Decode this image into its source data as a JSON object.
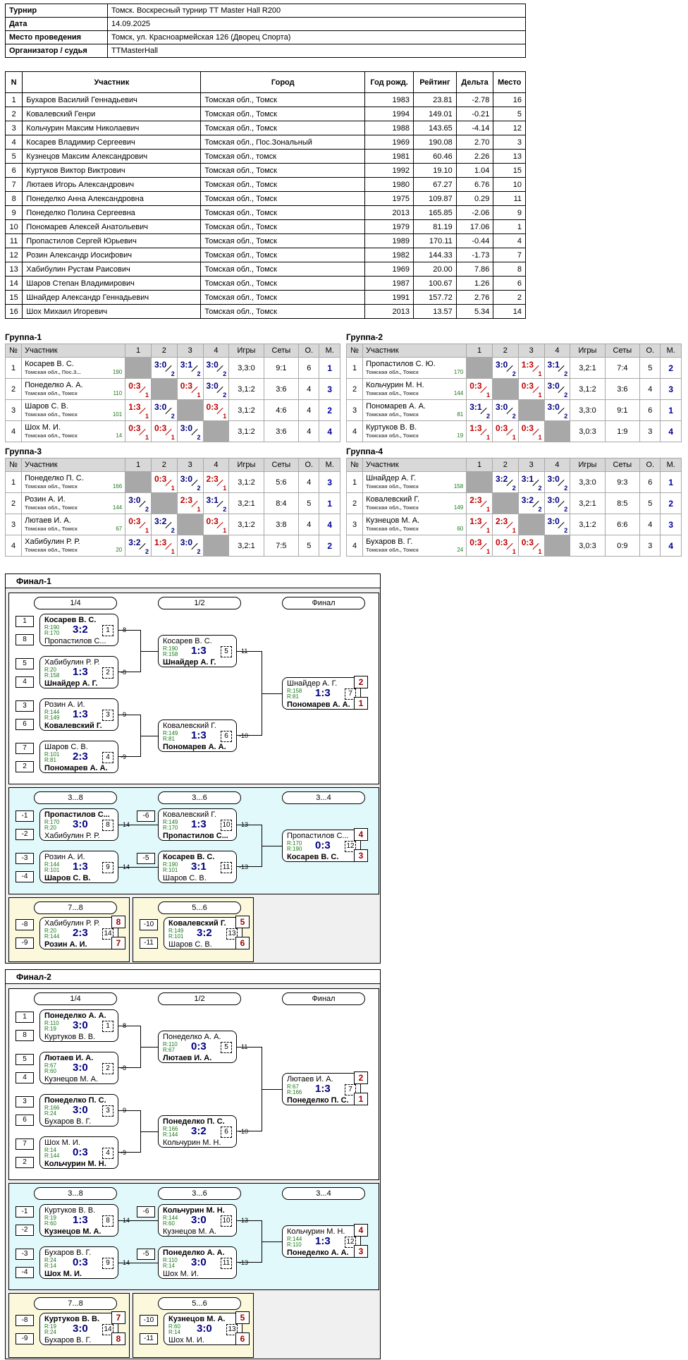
{
  "info": [
    [
      "Турнир",
      "Томск. Воскресный турнир ТТ Master Hall R200"
    ],
    [
      "Дата",
      "14.09.2025"
    ],
    [
      "Место проведения",
      "Томск, ул. Красноармейская 126 (Дворец Спорта)"
    ],
    [
      "Организатор / судья",
      "TTMasterHall"
    ]
  ],
  "players_header": [
    "N",
    "Участник",
    "Город",
    "Год рожд.",
    "Рейтинг",
    "Дельта",
    "Место"
  ],
  "players": [
    [
      "1",
      "Бухаров Василий Геннадьевич",
      "Томская обл., Томск",
      "1983",
      "23.81",
      "-2.78",
      "16"
    ],
    [
      "2",
      "Ковалевский Генри",
      "Томская обл., Томск",
      "1994",
      "149.01",
      "-0.21",
      "5"
    ],
    [
      "3",
      "Кольчурин Максим Николаевич",
      "Томская обл., Томск",
      "1988",
      "143.65",
      "-4.14",
      "12"
    ],
    [
      "4",
      "Косарев Владимир Сергеевич",
      "Томская обл., Пос.Зональный",
      "1969",
      "190.08",
      "2.70",
      "3"
    ],
    [
      "5",
      "Кузнецов Максим Александрович",
      "Томская обл., томск",
      "1981",
      "60.46",
      "2.26",
      "13"
    ],
    [
      "6",
      "Куртуков Виктор Виктрович",
      "Томская обл., Томск",
      "1992",
      "19.10",
      "1.04",
      "15"
    ],
    [
      "7",
      "Лютаев Игорь Александрович",
      "Томская обл., Томск",
      "1980",
      "67.27",
      "6.76",
      "10"
    ],
    [
      "8",
      "Понеделко Анна Александровна",
      "Томская обл., Томск",
      "1975",
      "109.87",
      "0.29",
      "11"
    ],
    [
      "9",
      "Понеделко Полина Сергеевна",
      "Томская обл., Томск",
      "2013",
      "165.85",
      "-2.06",
      "9"
    ],
    [
      "10",
      "Пономарев Алексей Анатольевич",
      "Томская обл., Томск",
      "1979",
      "81.19",
      "17.06",
      "1"
    ],
    [
      "11",
      "Пропастилов Сергей Юрьевич",
      "Томская обл., Томск",
      "1989",
      "170.11",
      "-0.44",
      "4"
    ],
    [
      "12",
      "Розин Александр Иосифович",
      "Томская обл., Томск",
      "1982",
      "144.33",
      "-1.73",
      "7"
    ],
    [
      "13",
      "Хабибулин Рустам Раисович",
      "Томская обл., Томск",
      "1969",
      "20.00",
      "7.86",
      "8"
    ],
    [
      "14",
      "Шаров Степан Владимирович",
      "Томская обл., Томск",
      "1987",
      "100.67",
      "1.26",
      "6"
    ],
    [
      "15",
      "Шнайдер Александр Геннадьевич",
      "Томская обл., Томск",
      "1991",
      "157.72",
      "2.76",
      "2"
    ],
    [
      "16",
      "Шох Михаил Игоревич",
      "Томская обл., Томск",
      "2013",
      "13.57",
      "5.34",
      "14"
    ]
  ],
  "group_header": [
    "№",
    "Участник",
    "1",
    "2",
    "3",
    "4",
    "Игры",
    "Сеты",
    "О.",
    "М."
  ],
  "groups": [
    {
      "title": "Группа-1",
      "rows": [
        {
          "n": "1",
          "name": "Косарев В. С.",
          "city": "Томская обл., Пос.З...",
          "rating": "190",
          "res": [
            "x",
            "3:0|2|w",
            "3:1|2|w",
            "3:0|2|w"
          ],
          "games": "3,3:0",
          "sets": "9:1",
          "pts": "6",
          "place": "1"
        },
        {
          "n": "2",
          "name": "Понеделко А. А.",
          "city": "Томская обл., Томск",
          "rating": "110",
          "res": [
            "0:3|1|l",
            "x",
            "0:3|1|l",
            "3:0|2|w"
          ],
          "games": "3,1:2",
          "sets": "3:6",
          "pts": "4",
          "place": "3"
        },
        {
          "n": "3",
          "name": "Шаров С. В.",
          "city": "Томская обл., Томск",
          "rating": "101",
          "res": [
            "1:3|1|l",
            "3:0|2|w",
            "x",
            "0:3|1|l"
          ],
          "games": "3,1:2",
          "sets": "4:6",
          "pts": "4",
          "place": "2"
        },
        {
          "n": "4",
          "name": "Шох М. И.",
          "city": "Томская обл., Томск",
          "rating": "14",
          "res": [
            "0:3|1|l",
            "0:3|1|l",
            "3:0|2|w",
            "x"
          ],
          "games": "3,1:2",
          "sets": "3:6",
          "pts": "4",
          "place": "4"
        }
      ]
    },
    {
      "title": "Группа-2",
      "rows": [
        {
          "n": "1",
          "name": "Пропастилов С. Ю.",
          "city": "Томская обл., Томск",
          "rating": "170",
          "res": [
            "x",
            "3:0|2|w",
            "1:3|1|l",
            "3:1|2|w"
          ],
          "games": "3,2:1",
          "sets": "7:4",
          "pts": "5",
          "place": "2"
        },
        {
          "n": "2",
          "name": "Кольчурин М. Н.",
          "city": "Томская обл., Томск",
          "rating": "144",
          "res": [
            "0:3|1|l",
            "x",
            "0:3|1|l",
            "3:0|2|w"
          ],
          "games": "3,1:2",
          "sets": "3:6",
          "pts": "4",
          "place": "3"
        },
        {
          "n": "3",
          "name": "Пономарев А. А.",
          "city": "Томская обл., Томск",
          "rating": "81",
          "res": [
            "3:1|2|w",
            "3:0|2|w",
            "x",
            "3:0|2|w"
          ],
          "games": "3,3:0",
          "sets": "9:1",
          "pts": "6",
          "place": "1"
        },
        {
          "n": "4",
          "name": "Куртуков В. В.",
          "city": "Томская обл., Томск",
          "rating": "19",
          "res": [
            "1:3|1|l",
            "0:3|1|l",
            "0:3|1|l",
            "x"
          ],
          "games": "3,0:3",
          "sets": "1:9",
          "pts": "3",
          "place": "4"
        }
      ]
    },
    {
      "title": "Группа-3",
      "rows": [
        {
          "n": "1",
          "name": "Понеделко П. С.",
          "city": "Томская обл., Томск",
          "rating": "166",
          "res": [
            "x",
            "0:3|1|l",
            "3:0|2|w",
            "2:3|1|l"
          ],
          "games": "3,1:2",
          "sets": "5:6",
          "pts": "4",
          "place": "3"
        },
        {
          "n": "2",
          "name": "Розин А. И.",
          "city": "Томская обл., Томск",
          "rating": "144",
          "res": [
            "3:0|2|w",
            "x",
            "2:3|1|l",
            "3:1|2|w"
          ],
          "games": "3,2:1",
          "sets": "8:4",
          "pts": "5",
          "place": "1"
        },
        {
          "n": "3",
          "name": "Лютаев И. А.",
          "city": "Томская обл., Томск",
          "rating": "67",
          "res": [
            "0:3|1|l",
            "3:2|2|w",
            "x",
            "0:3|1|l"
          ],
          "games": "3,1:2",
          "sets": "3:8",
          "pts": "4",
          "place": "4"
        },
        {
          "n": "4",
          "name": "Хабибулин Р. Р.",
          "city": "Томская обл., Томск",
          "rating": "20",
          "res": [
            "3:2|2|w",
            "1:3|1|l",
            "3:0|2|w",
            "x"
          ],
          "games": "3,2:1",
          "sets": "7:5",
          "pts": "5",
          "place": "2"
        }
      ]
    },
    {
      "title": "Группа-4",
      "rows": [
        {
          "n": "1",
          "name": "Шнайдер А. Г.",
          "city": "Томская обл., Томск",
          "rating": "158",
          "res": [
            "x",
            "3:2|2|w",
            "3:1|2|w",
            "3:0|2|w"
          ],
          "games": "3,3:0",
          "sets": "9:3",
          "pts": "6",
          "place": "1"
        },
        {
          "n": "2",
          "name": "Ковалевский Г.",
          "city": "Томская обл., Томск",
          "rating": "149",
          "res": [
            "2:3|1|l",
            "x",
            "3:2|2|w",
            "3:0|2|w"
          ],
          "games": "3,2:1",
          "sets": "8:5",
          "pts": "5",
          "place": "2"
        },
        {
          "n": "3",
          "name": "Кузнецов М. А.",
          "city": "Томская обл., Томск",
          "rating": "60",
          "res": [
            "1:3|1|l",
            "2:3|1|l",
            "x",
            "3:0|2|w"
          ],
          "games": "3,1:2",
          "sets": "6:6",
          "pts": "4",
          "place": "3"
        },
        {
          "n": "4",
          "name": "Бухаров В. Г.",
          "city": "Томская обл., Томск",
          "rating": "24",
          "res": [
            "0:3|1|l",
            "0:3|1|l",
            "0:3|1|l",
            "x"
          ],
          "games": "3,0:3",
          "sets": "0:9",
          "pts": "3",
          "place": "4"
        }
      ]
    }
  ],
  "finals": [
    {
      "title": "Финал-1",
      "round_labels": [
        "1/4",
        "1/2",
        "Финал",
        "3...8",
        "3...6",
        "3...4",
        "7...8",
        "5...6"
      ],
      "matches": [
        {
          "p1": "Косарев В. С.",
          "r1": "R:190",
          "p2": "Пропастилов С...",
          "r2": "R:170",
          "score": "3:2",
          "num": "1",
          "w": 1,
          "s1": "1",
          "s2": "8",
          "out": "-8"
        },
        {
          "p1": "Хабибулин Р. Р.",
          "r1": "R:20",
          "p2": "Шнайдер А. Г.",
          "r2": "R:158",
          "score": "1:3",
          "num": "2",
          "w": 2,
          "s1": "5",
          "s2": "4",
          "out": "-8"
        },
        {
          "p1": "Розин А. И.",
          "r1": "R:144",
          "p2": "Ковалевский Г.",
          "r2": "R:149",
          "score": "1:3",
          "num": "3",
          "w": 2,
          "s1": "3",
          "s2": "6",
          "out": "-9"
        },
        {
          "p1": "Шаров С. В.",
          "r1": "R:101",
          "p2": "Пономарев А. А.",
          "r2": "R:81",
          "score": "2:3",
          "num": "4",
          "w": 2,
          "s1": "7",
          "s2": "2",
          "out": "-9"
        },
        {
          "p1": "Косарев В. С.",
          "r1": "R:190",
          "p2": "Шнайдер А. Г.",
          "r2": "R:158",
          "score": "1:3",
          "num": "5",
          "w": 2,
          "out": "-11"
        },
        {
          "p1": "Ковалевский Г.",
          "r1": "R:149",
          "p2": "Пономарев А. А.",
          "r2": "R:81",
          "score": "1:3",
          "num": "6",
          "w": 2,
          "out": "-10"
        },
        {
          "p1": "Шнайдер А. Г.",
          "r1": "R:158",
          "p2": "Пономарев А. А.",
          "r2": "R:81",
          "score": "1:3",
          "num": "7",
          "w": 2,
          "pl1": "2",
          "pl2": "1"
        },
        {
          "p1": "Пропастилов С...",
          "r1": "R:170",
          "p2": "Хабибулин Р. Р.",
          "r2": "R:20",
          "score": "3:0",
          "num": "8",
          "w": 1,
          "s1": "-1",
          "s2": "-2",
          "out": "-14"
        },
        {
          "p1": "Розин А. И.",
          "r1": "R:144",
          "p2": "Шаров С. В.",
          "r2": "R:101",
          "score": "1:3",
          "num": "9",
          "w": 2,
          "s1": "-3",
          "s2": "-4",
          "out": "-14"
        },
        {
          "p1": "Ковалевский Г.",
          "r1": "R:149",
          "p2": "Пропастилов С...",
          "r2": "R:170",
          "score": "1:3",
          "num": "10",
          "w": 2,
          "s1": "-6",
          "out": "-13"
        },
        {
          "p1": "Косарев В. С.",
          "r1": "R:190",
          "p2": "Шаров С. В.",
          "r2": "R:101",
          "score": "3:1",
          "num": "11",
          "w": 1,
          "s1": "-5",
          "out": "-13"
        },
        {
          "p1": "Пропастилов С...",
          "r1": "R:170",
          "p2": "Косарев В. С.",
          "r2": "R:190",
          "score": "0:3",
          "num": "12",
          "w": 2,
          "pl1": "4",
          "pl2": "3"
        },
        {
          "p1": "Хабибулин Р. Р.",
          "r1": "R:20",
          "p2": "Розин А. И.",
          "r2": "R:144",
          "score": "2:3",
          "num": "14",
          "w": 2,
          "s1": "-8",
          "s2": "-9",
          "pl1": "8",
          "pl2": "7"
        },
        {
          "p1": "Ковалевский Г.",
          "r1": "R:149",
          "p2": "Шаров С. В.",
          "r2": "R:101",
          "score": "3:2",
          "num": "13",
          "w": 1,
          "s1": "-10",
          "s2": "-11",
          "pl1": "5",
          "pl2": "6"
        }
      ]
    },
    {
      "title": "Финал-2",
      "round_labels": [
        "1/4",
        "1/2",
        "Финал",
        "3...8",
        "3...6",
        "3...4",
        "7...8",
        "5...6"
      ],
      "matches": [
        {
          "p1": "Понеделко А. А.",
          "r1": "R:110",
          "p2": "Куртуков В. В.",
          "r2": "R:19",
          "score": "3:0",
          "num": "1",
          "w": 1,
          "s1": "1",
          "s2": "8",
          "out": "-8"
        },
        {
          "p1": "Лютаев И. А.",
          "r1": "R:67",
          "p2": "Кузнецов М. А.",
          "r2": "R:60",
          "score": "3:0",
          "num": "2",
          "w": 1,
          "s1": "5",
          "s2": "4",
          "out": "-8"
        },
        {
          "p1": "Понеделко П. С.",
          "r1": "R:166",
          "p2": "Бухаров В. Г.",
          "r2": "R:24",
          "score": "3:0",
          "num": "3",
          "w": 1,
          "s1": "3",
          "s2": "6",
          "out": "-9"
        },
        {
          "p1": "Шох М. И.",
          "r1": "R:14",
          "p2": "Кольчурин М. Н.",
          "r2": "R:144",
          "score": "0:3",
          "num": "4",
          "w": 2,
          "s1": "7",
          "s2": "2",
          "out": "-9"
        },
        {
          "p1": "Понеделко А. А.",
          "r1": "R:110",
          "p2": "Лютаев И. А.",
          "r2": "R:67",
          "score": "0:3",
          "num": "5",
          "w": 2,
          "out": "-11"
        },
        {
          "p1": "Понеделко П. С.",
          "r1": "R:166",
          "p2": "Кольчурин М. Н.",
          "r2": "R:144",
          "score": "3:2",
          "num": "6",
          "w": 1,
          "out": "-10"
        },
        {
          "p1": "Лютаев И. А.",
          "r1": "R:67",
          "p2": "Понеделко П. С.",
          "r2": "R:166",
          "score": "1:3",
          "num": "7",
          "w": 2,
          "pl1": "2",
          "pl2": "1"
        },
        {
          "p1": "Куртуков В. В.",
          "r1": "R:19",
          "p2": "Кузнецов М. А.",
          "r2": "R:60",
          "score": "1:3",
          "num": "8",
          "w": 2,
          "s1": "-1",
          "s2": "-2",
          "out": "-14"
        },
        {
          "p1": "Бухаров В. Г.",
          "r1": "R:24",
          "p2": "Шох М. И.",
          "r2": "R:14",
          "score": "0:3",
          "num": "9",
          "w": 2,
          "s1": "-3",
          "s2": "-4",
          "out": "-14"
        },
        {
          "p1": "Кольчурин М. Н.",
          "r1": "R:144",
          "p2": "Кузнецов М. А.",
          "r2": "R:60",
          "score": "3:0",
          "num": "10",
          "w": 1,
          "s1": "-6",
          "out": "-13"
        },
        {
          "p1": "Понеделко А. А.",
          "r1": "R:110",
          "p2": "Шох М. И.",
          "r2": "R:14",
          "score": "3:0",
          "num": "11",
          "w": 1,
          "s1": "-5",
          "out": "-13"
        },
        {
          "p1": "Кольчурин М. Н.",
          "r1": "R:144",
          "p2": "Понеделко А. А.",
          "r2": "R:110",
          "score": "1:3",
          "num": "12",
          "w": 2,
          "pl1": "4",
          "pl2": "3"
        },
        {
          "p1": "Куртуков В. В.",
          "r1": "R:19",
          "p2": "Бухаров В. Г.",
          "r2": "R:24",
          "score": "3:0",
          "num": "14",
          "w": 1,
          "s1": "-8",
          "s2": "-9",
          "pl1": "7",
          "pl2": "8"
        },
        {
          "p1": "Кузнецов М. А.",
          "r1": "R:60",
          "p2": "Шох М. И.",
          "r2": "R:14",
          "score": "3:0",
          "num": "13",
          "w": 1,
          "s1": "-10",
          "s2": "-11",
          "pl1": "5",
          "pl2": "6"
        }
      ]
    }
  ]
}
